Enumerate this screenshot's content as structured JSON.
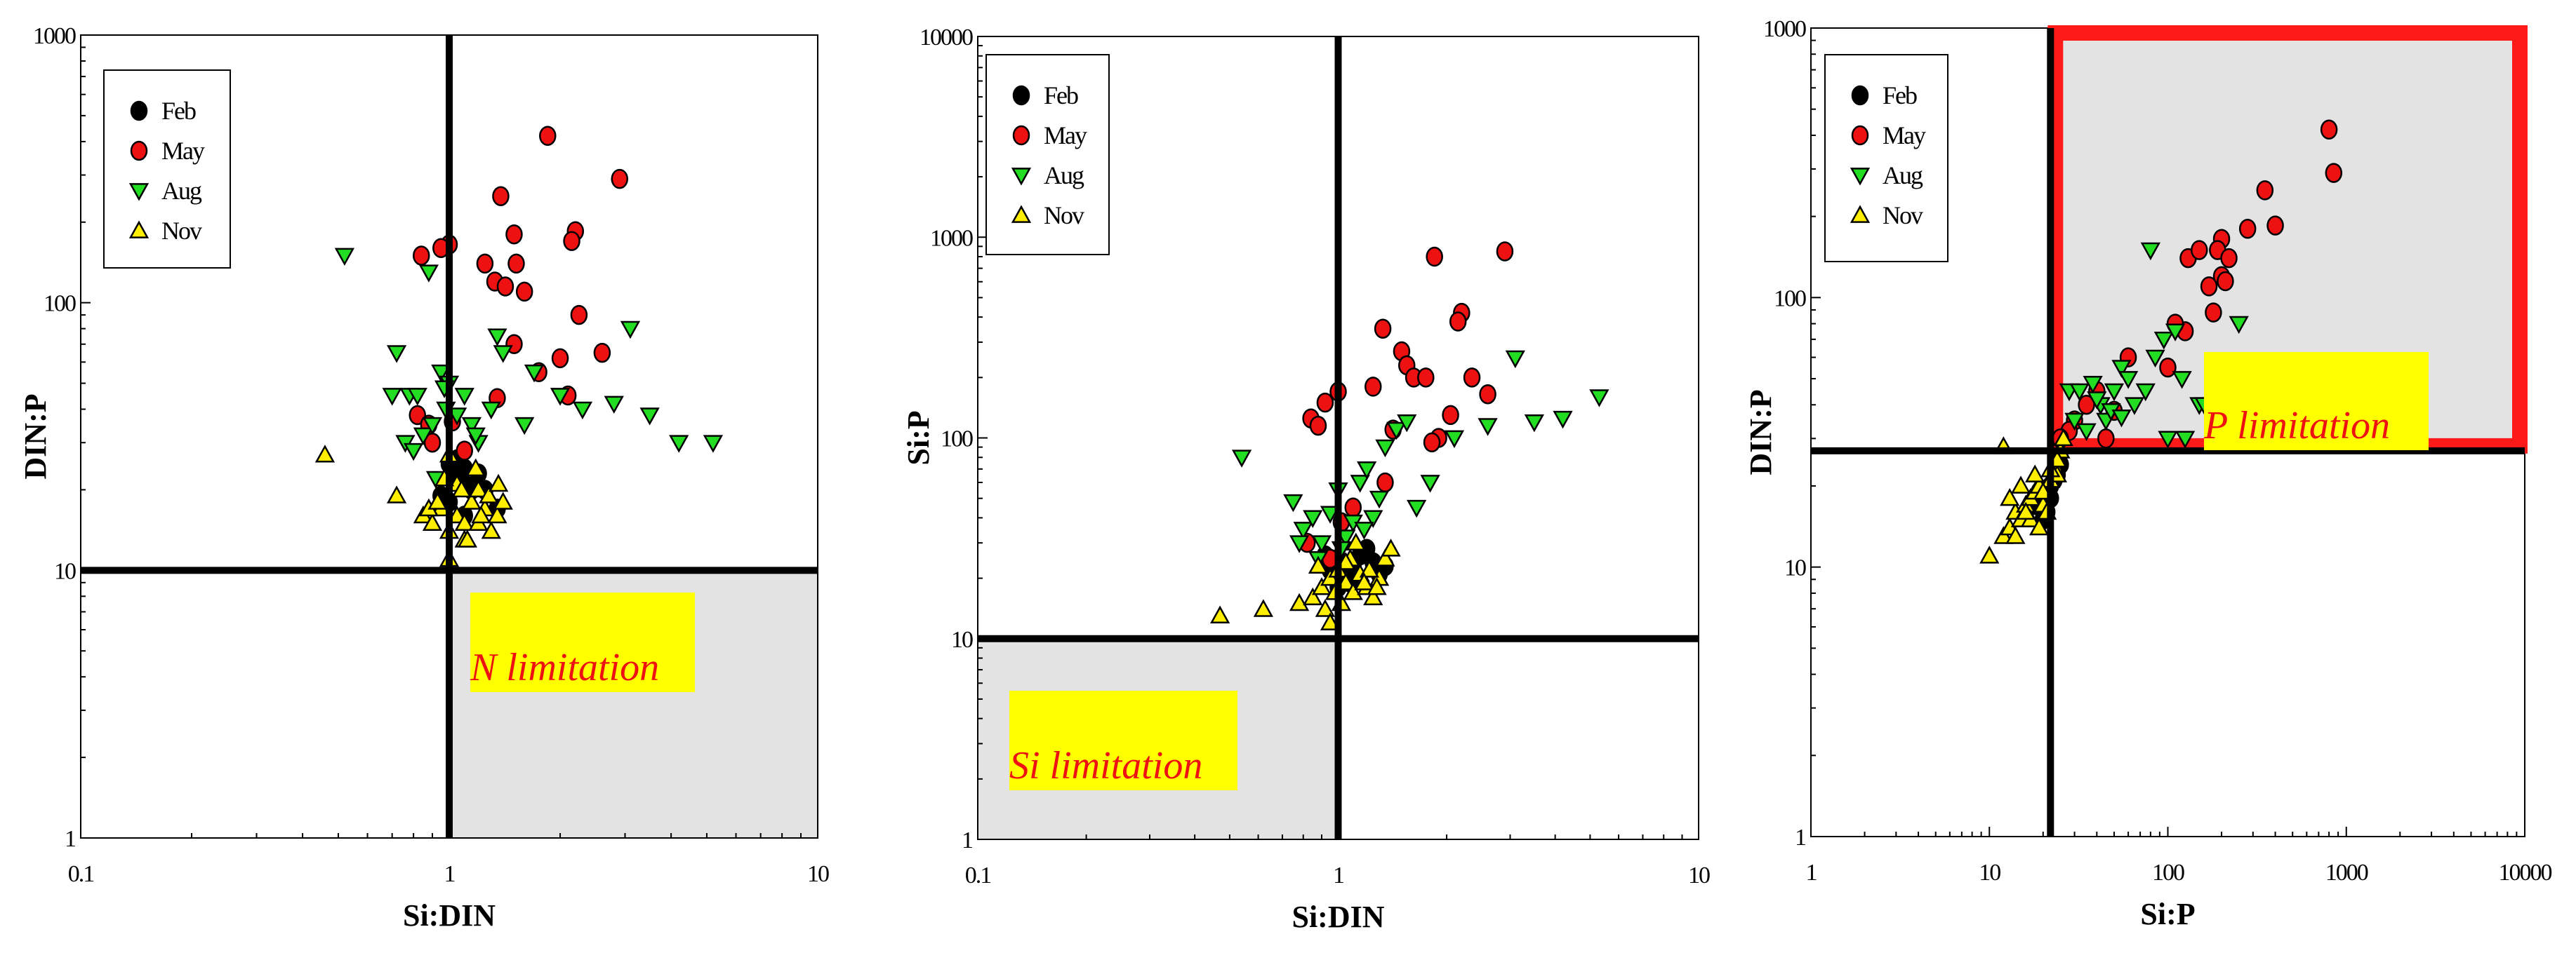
{
  "chart_data": [
    {
      "type": "scatter",
      "xscale": "log",
      "yscale": "log",
      "xlabel": "Si:DIN",
      "ylabel": "DIN:P",
      "xlim": [
        0.1,
        10
      ],
      "ylim": [
        1,
        1000
      ],
      "xticks": [
        "0.1",
        "1",
        "10"
      ],
      "yticks": [
        "1",
        "10",
        "100",
        "1000"
      ],
      "thresholds": {
        "x": 1,
        "y": 10
      },
      "region": {
        "label": "N limitation",
        "x": [
          1,
          10
        ],
        "y": [
          1,
          10
        ]
      },
      "legend": [
        "Feb",
        "May",
        "Aug",
        "Nov"
      ],
      "series": [
        {
          "name": "Feb",
          "marker": "circle",
          "color": "#000000",
          "x": [
            1.05,
            1.1,
            1.15,
            1.0,
            1.2,
            1.35,
            1.0,
            1.1,
            0.95,
            1.05,
            1.25,
            1.1
          ],
          "y": [
            22,
            24,
            20,
            18,
            23,
            17,
            25,
            21,
            19,
            26,
            20,
            16
          ]
        },
        {
          "name": "May",
          "marker": "circle",
          "color": "#ee1111",
          "x": [
            1.85,
            1.38,
            2.9,
            1.5,
            2.2,
            0.84,
            1.0,
            0.95,
            1.25,
            1.33,
            1.52,
            1.42,
            1.6,
            2.15,
            2.25,
            1.5,
            2.0,
            2.6,
            1.75,
            1.35,
            2.1,
            0.82,
            0.88,
            1.02,
            1.1,
            0.9
          ],
          "y": [
            420,
            250,
            290,
            180,
            185,
            150,
            165,
            160,
            140,
            120,
            140,
            115,
            110,
            170,
            90,
            70,
            62,
            65,
            55,
            44,
            45,
            38,
            35,
            36,
            28,
            30
          ]
        },
        {
          "name": "Aug",
          "marker": "tri-down",
          "color": "#22dd22",
          "x": [
            0.52,
            0.88,
            0.72,
            0.78,
            0.95,
            1.0,
            0.98,
            0.76,
            0.85,
            0.9,
            1.1,
            1.15,
            1.2,
            1.35,
            1.4,
            1.3,
            1.7,
            2.0,
            2.3,
            2.8,
            3.1,
            3.5,
            4.2,
            5.2,
            1.6,
            0.82,
            1.05,
            0.7,
            0.8,
            0.92,
            1.18,
            0.97
          ],
          "y": [
            150,
            130,
            65,
            45,
            55,
            50,
            40,
            30,
            32,
            35,
            45,
            35,
            30,
            75,
            65,
            40,
            55,
            45,
            40,
            42,
            80,
            38,
            30,
            30,
            35,
            45,
            38,
            45,
            28,
            22,
            32,
            48
          ]
        },
        {
          "name": "Nov",
          "marker": "tri-up",
          "color": "#ffee00",
          "x": [
            0.46,
            0.72,
            0.85,
            0.9,
            0.95,
            1.0,
            1.05,
            1.1,
            1.15,
            1.2,
            1.25,
            1.3,
            1.35,
            1.4,
            1.0,
            1.1,
            1.2,
            1.05,
            0.88,
            0.97,
            1.18,
            1.28,
            1.12,
            0.93,
            1.0,
            1.36,
            1.08,
            1.22
          ],
          "y": [
            27,
            19,
            16,
            15,
            17,
            14,
            16,
            15,
            18,
            20,
            17,
            14,
            16,
            18,
            11,
            13,
            15,
            21,
            17,
            22,
            24,
            19,
            13,
            18,
            27,
            21,
            20,
            16
          ]
        }
      ]
    },
    {
      "type": "scatter",
      "xscale": "log",
      "yscale": "log",
      "xlabel": "Si:DIN",
      "ylabel": "Si:P",
      "xlim": [
        0.1,
        10
      ],
      "ylim": [
        1,
        10000
      ],
      "xticks": [
        "0.1",
        "1",
        "10"
      ],
      "yticks": [
        "1",
        "10",
        "100",
        "1000",
        "10000"
      ],
      "thresholds": {
        "x": 1,
        "y": 10
      },
      "region": {
        "label": "Si limitation",
        "x": [
          0.1,
          1
        ],
        "y": [
          1,
          10
        ]
      },
      "legend": [
        "Feb",
        "May",
        "Aug",
        "Nov"
      ],
      "series": [
        {
          "name": "Feb",
          "marker": "circle",
          "color": "#000000",
          "x": [
            0.95,
            1.0,
            1.05,
            1.1,
            1.15,
            1.2,
            1.25,
            1.3,
            1.35,
            1.0,
            0.92,
            1.08
          ],
          "y": [
            22,
            25,
            20,
            23,
            26,
            28,
            24,
            21,
            23,
            18,
            26,
            19
          ]
        },
        {
          "name": "May",
          "marker": "circle",
          "color": "#ee1111",
          "x": [
            1.85,
            2.9,
            1.33,
            1.5,
            2.2,
            2.15,
            1.55,
            1.25,
            1.0,
            1.62,
            2.35,
            2.6,
            1.75,
            1.42,
            2.05,
            1.9,
            1.82,
            0.84,
            0.88,
            0.92,
            1.35,
            1.1,
            0.82,
            1.02,
            0.95
          ],
          "y": [
            800,
            850,
            350,
            270,
            420,
            380,
            230,
            180,
            170,
            200,
            200,
            165,
            200,
            110,
            130,
            100,
            95,
            125,
            115,
            150,
            60,
            45,
            30,
            38,
            25
          ]
        },
        {
          "name": "Aug",
          "marker": "tri-down",
          "color": "#22dd22",
          "x": [
            0.54,
            0.75,
            0.8,
            0.85,
            0.9,
            0.95,
            1.0,
            1.05,
            1.1,
            1.15,
            1.2,
            1.25,
            1.35,
            1.45,
            1.55,
            1.8,
            2.1,
            2.6,
            3.1,
            3.5,
            4.2,
            5.3,
            1.3,
            1.65,
            0.78,
            1.02,
            0.88,
            1.18
          ],
          "y": [
            80,
            48,
            35,
            40,
            30,
            42,
            55,
            32,
            38,
            60,
            70,
            40,
            90,
            110,
            120,
            60,
            100,
            115,
            250,
            120,
            125,
            160,
            50,
            45,
            30,
            28,
            25,
            35
          ]
        },
        {
          "name": "Nov",
          "marker": "tri-up",
          "color": "#ffee00",
          "x": [
            0.47,
            0.62,
            0.78,
            0.85,
            0.9,
            0.95,
            1.0,
            1.05,
            1.1,
            1.15,
            1.2,
            1.25,
            1.3,
            1.35,
            0.92,
            1.02,
            1.12,
            1.22,
            1.08,
            0.98,
            1.18,
            0.88,
            0.95,
            1.28,
            1.4,
            1.05
          ],
          "y": [
            13,
            14,
            15,
            16,
            18,
            20,
            22,
            19,
            17,
            21,
            18,
            16,
            20,
            25,
            14,
            15,
            30,
            22,
            25,
            17,
            19,
            23,
            12,
            18,
            28,
            24
          ]
        }
      ]
    },
    {
      "type": "scatter",
      "xscale": "log",
      "yscale": "log",
      "xlabel": "Si:P",
      "ylabel": "DIN:P",
      "xlim": [
        1,
        10000
      ],
      "ylim": [
        1,
        1000
      ],
      "xticks": [
        "1",
        "10",
        "100",
        "1000",
        "10000"
      ],
      "yticks": [
        "1",
        "10",
        "100",
        "1000"
      ],
      "thresholds": {
        "x": 22,
        "y": 27
      },
      "region": {
        "label": "P limitation",
        "x": [
          22,
          10000
        ],
        "y": [
          27,
          1000
        ]
      },
      "legend": [
        "Feb",
        "May",
        "Aug",
        "Nov"
      ],
      "series": [
        {
          "name": "Feb",
          "marker": "circle",
          "color": "#000000",
          "x": [
            18,
            20,
            22,
            24,
            21,
            19,
            23,
            25,
            20,
            22
          ],
          "y": [
            17,
            18,
            20,
            22,
            16,
            19,
            21,
            24,
            15,
            18
          ]
        },
        {
          "name": "May",
          "marker": "circle",
          "color": "#ee1111",
          "x": [
            800,
            850,
            350,
            400,
            280,
            200,
            190,
            220,
            130,
            150,
            200,
            210,
            170,
            125,
            100,
            60,
            40,
            35,
            30,
            45,
            50,
            28,
            25,
            110,
            180
          ],
          "y": [
            420,
            290,
            250,
            185,
            180,
            165,
            150,
            140,
            140,
            150,
            120,
            115,
            110,
            75,
            55,
            60,
            45,
            40,
            35,
            30,
            38,
            32,
            30,
            80,
            88
          ]
        },
        {
          "name": "Aug",
          "marker": "tri-down",
          "color": "#22dd22",
          "x": [
            80,
            28,
            32,
            38,
            42,
            45,
            50,
            55,
            60,
            65,
            75,
            85,
            95,
            110,
            120,
            125,
            150,
            160,
            200,
            250,
            30,
            35,
            40,
            48,
            100,
            55
          ],
          "y": [
            150,
            45,
            45,
            48,
            40,
            35,
            45,
            55,
            50,
            40,
            45,
            60,
            70,
            75,
            50,
            30,
            40,
            40,
            55,
            80,
            35,
            32,
            42,
            38,
            30,
            36
          ]
        },
        {
          "name": "Nov",
          "marker": "tri-up",
          "color": "#ffee00",
          "x": [
            10,
            12,
            13,
            14,
            15,
            16,
            17,
            18,
            19,
            20,
            21,
            22,
            23,
            24,
            25,
            13,
            15,
            17,
            19,
            12,
            14,
            16,
            18,
            20,
            22,
            24,
            26
          ],
          "y": [
            11,
            13,
            14,
            16,
            15,
            17,
            18,
            19,
            20,
            17,
            16,
            21,
            24,
            22,
            27,
            18,
            20,
            15,
            14,
            28,
            13,
            16,
            22,
            19,
            23,
            25,
            30
          ]
        }
      ]
    }
  ]
}
